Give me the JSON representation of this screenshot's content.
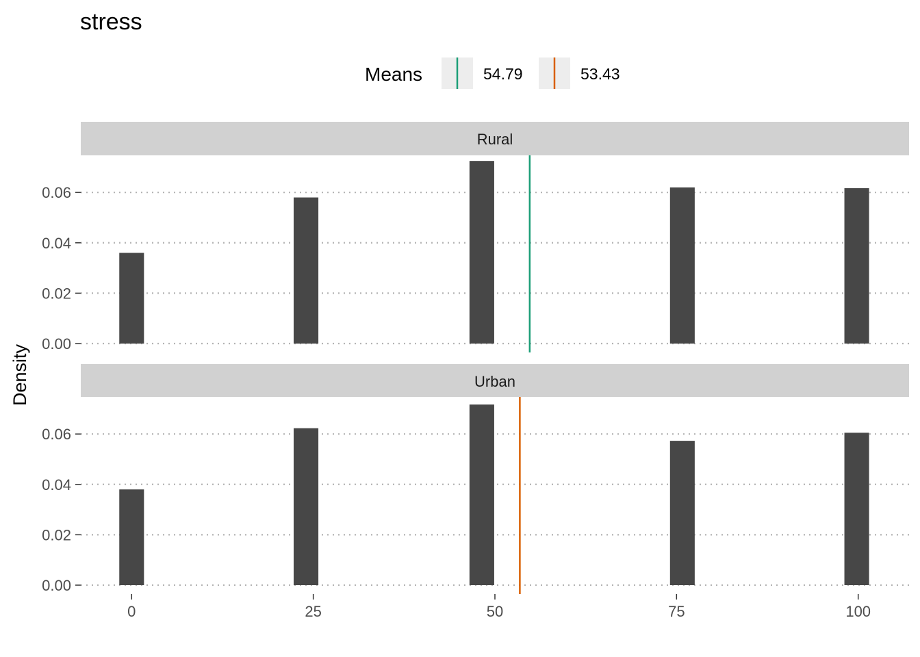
{
  "chart_data": {
    "type": "bar",
    "title": "stress",
    "xlabel": "",
    "ylabel": "Density",
    "x_ticks": [
      "0",
      "25",
      "50",
      "75",
      "100"
    ],
    "x_tick_values": [
      0,
      25,
      50,
      75,
      100
    ],
    "xlim": [
      -7,
      107
    ],
    "ylim": [
      0,
      0.072
    ],
    "y_ticks": [
      "0.00",
      "0.02",
      "0.04",
      "0.06"
    ],
    "y_tick_values": [
      0,
      0.02,
      0.04,
      0.06
    ],
    "grid": "horizontal dotted",
    "legend": {
      "title": "Means",
      "placement": "top",
      "entries": [
        {
          "label": "54.79",
          "color": "#1b9e77"
        },
        {
          "label": "53.43",
          "color": "#d95f02"
        }
      ]
    },
    "bar_color": "#474747",
    "bar_width": 3.4,
    "facets": [
      {
        "name": "Rural",
        "x": [
          0,
          24,
          48.2,
          75.8,
          99.8
        ],
        "values": [
          0.036,
          0.058,
          0.0725,
          0.062,
          0.0617
        ],
        "mean": 54.79,
        "mean_color": "#1b9e77"
      },
      {
        "name": "Urban",
        "x": [
          0,
          24,
          48.2,
          75.8,
          99.8
        ],
        "values": [
          0.038,
          0.0623,
          0.0717,
          0.0573,
          0.0605
        ],
        "mean": 53.43,
        "mean_color": "#d95f02"
      }
    ]
  }
}
